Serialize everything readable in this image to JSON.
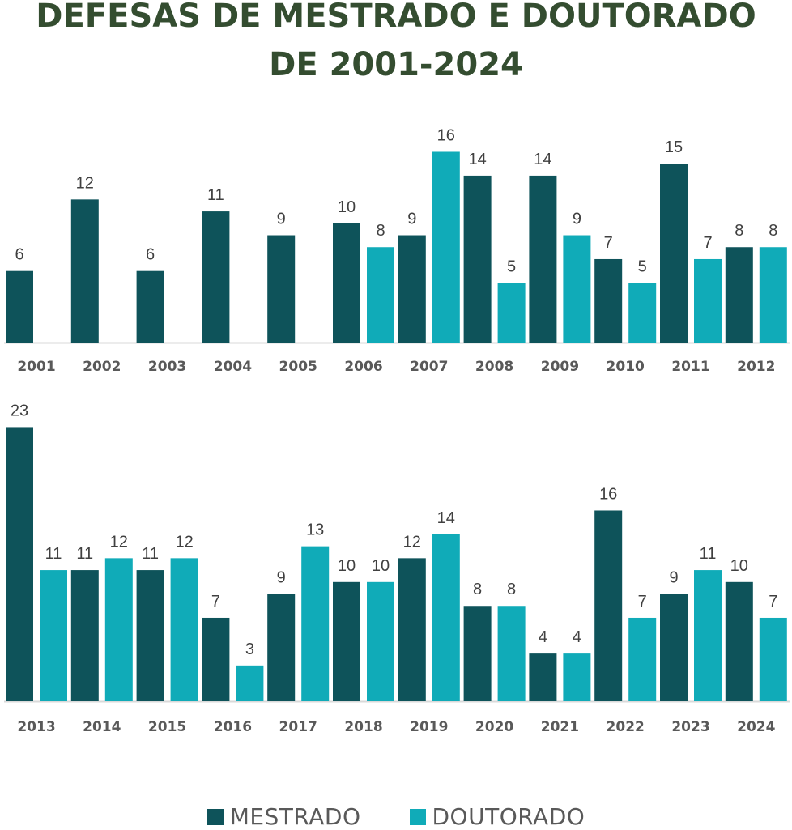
{
  "chart_data": {
    "type": "bar",
    "title_line1": "DEFESAS DE MESTRADO E DOUTORADO",
    "title_line2": "DE 2001-2024",
    "xlabel": "",
    "ylabel": "",
    "grid": false,
    "legend_position": "bottom",
    "colors": {
      "mestrado": "#0e535a",
      "doutorado": "#10abb8",
      "title": "#344d30"
    },
    "series": [
      {
        "key": "mestrado",
        "name": "MESTRADO"
      },
      {
        "key": "doutorado",
        "name": "DOUTORADO"
      }
    ],
    "panels": [
      {
        "categories": [
          "2001",
          "2002",
          "2003",
          "2004",
          "2005",
          "2006",
          "2007",
          "2008",
          "2009",
          "2010",
          "2011",
          "2012"
        ],
        "ylim": [
          0,
          16
        ],
        "mestrado": [
          6,
          12,
          6,
          11,
          9,
          10,
          9,
          14,
          14,
          7,
          15,
          8
        ],
        "doutorado": [
          null,
          null,
          null,
          null,
          null,
          8,
          16,
          5,
          9,
          5,
          7,
          8
        ]
      },
      {
        "categories": [
          "2013",
          "2014",
          "2015",
          "2016",
          "2017",
          "2018",
          "2019",
          "2020",
          "2021",
          "2022",
          "2023",
          "2024"
        ],
        "ylim": [
          0,
          23
        ],
        "mestrado": [
          23,
          11,
          11,
          7,
          9,
          10,
          12,
          8,
          4,
          16,
          9,
          10
        ],
        "doutorado": [
          11,
          12,
          12,
          3,
          13,
          10,
          14,
          8,
          4,
          7,
          11,
          7
        ]
      }
    ]
  }
}
